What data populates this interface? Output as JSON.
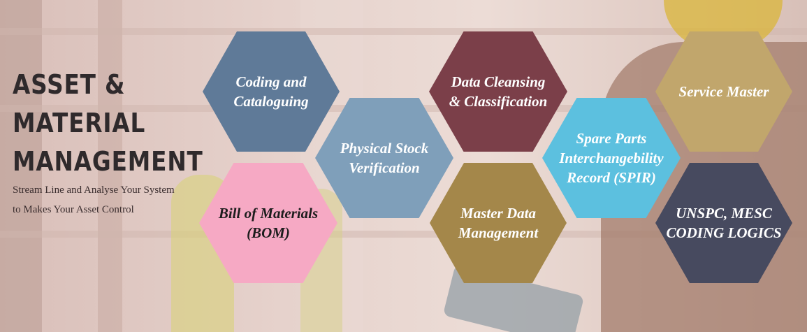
{
  "header": {
    "title_lines": [
      "ASSET &",
      "MATERIAL",
      "MANAGEMENT"
    ],
    "subtitle_lines": [
      "Stream Line and Analyse Your System",
      "to Makes Your Asset Control"
    ]
  },
  "hexagons": [
    {
      "label_lines": [
        "Coding and",
        "Cataloguing"
      ],
      "color": "#5f7a98"
    },
    {
      "label_lines": [
        "Physical Stock",
        "Verification"
      ],
      "color": "#7f9fba"
    },
    {
      "label_lines": [
        "Bill of Materials",
        "(BOM)"
      ],
      "color": "#f6a9c4"
    },
    {
      "label_lines": [
        "Data Cleansing",
        "& Classification"
      ],
      "color": "#7b3f49"
    },
    {
      "label_lines": [
        "Master Data",
        "Management"
      ],
      "color": "#a4874a"
    },
    {
      "label_lines": [
        "Spare Parts",
        "Interchangebility",
        "Record (SPIR)"
      ],
      "color": "#5cc0df"
    },
    {
      "label_lines": [
        "Service Master"
      ],
      "color": "#c1a66c"
    },
    {
      "label_lines": [
        "UNSPC, MESC",
        "CODING LOGICS"
      ],
      "color": "#474a5f"
    }
  ],
  "colors": {
    "title": "#2f2a2c",
    "subtitle": "#3a2d2e"
  }
}
